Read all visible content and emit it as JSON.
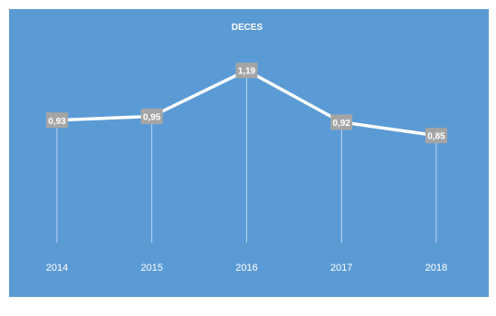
{
  "chart_data": {
    "type": "line",
    "title": "DECES",
    "xlabel": "",
    "ylabel": "",
    "categories": [
      "2014",
      "2015",
      "2016",
      "2017",
      "2018"
    ],
    "series": [
      {
        "values": [
          0.93,
          0.95,
          1.19,
          0.92,
          0.85
        ],
        "labels": [
          "0,93",
          "0,95",
          "1,19",
          "0,92",
          "0,85"
        ]
      }
    ],
    "ylim": [
      0.4,
      1.25
    ],
    "grid": false,
    "legend": "none",
    "drop_lines": true
  },
  "colors": {
    "background": "#5b9bd5",
    "line": "#ffffff",
    "label_box": "#a5a5a5",
    "label_text": "#ffffff",
    "drop_line": "#ffffff"
  }
}
